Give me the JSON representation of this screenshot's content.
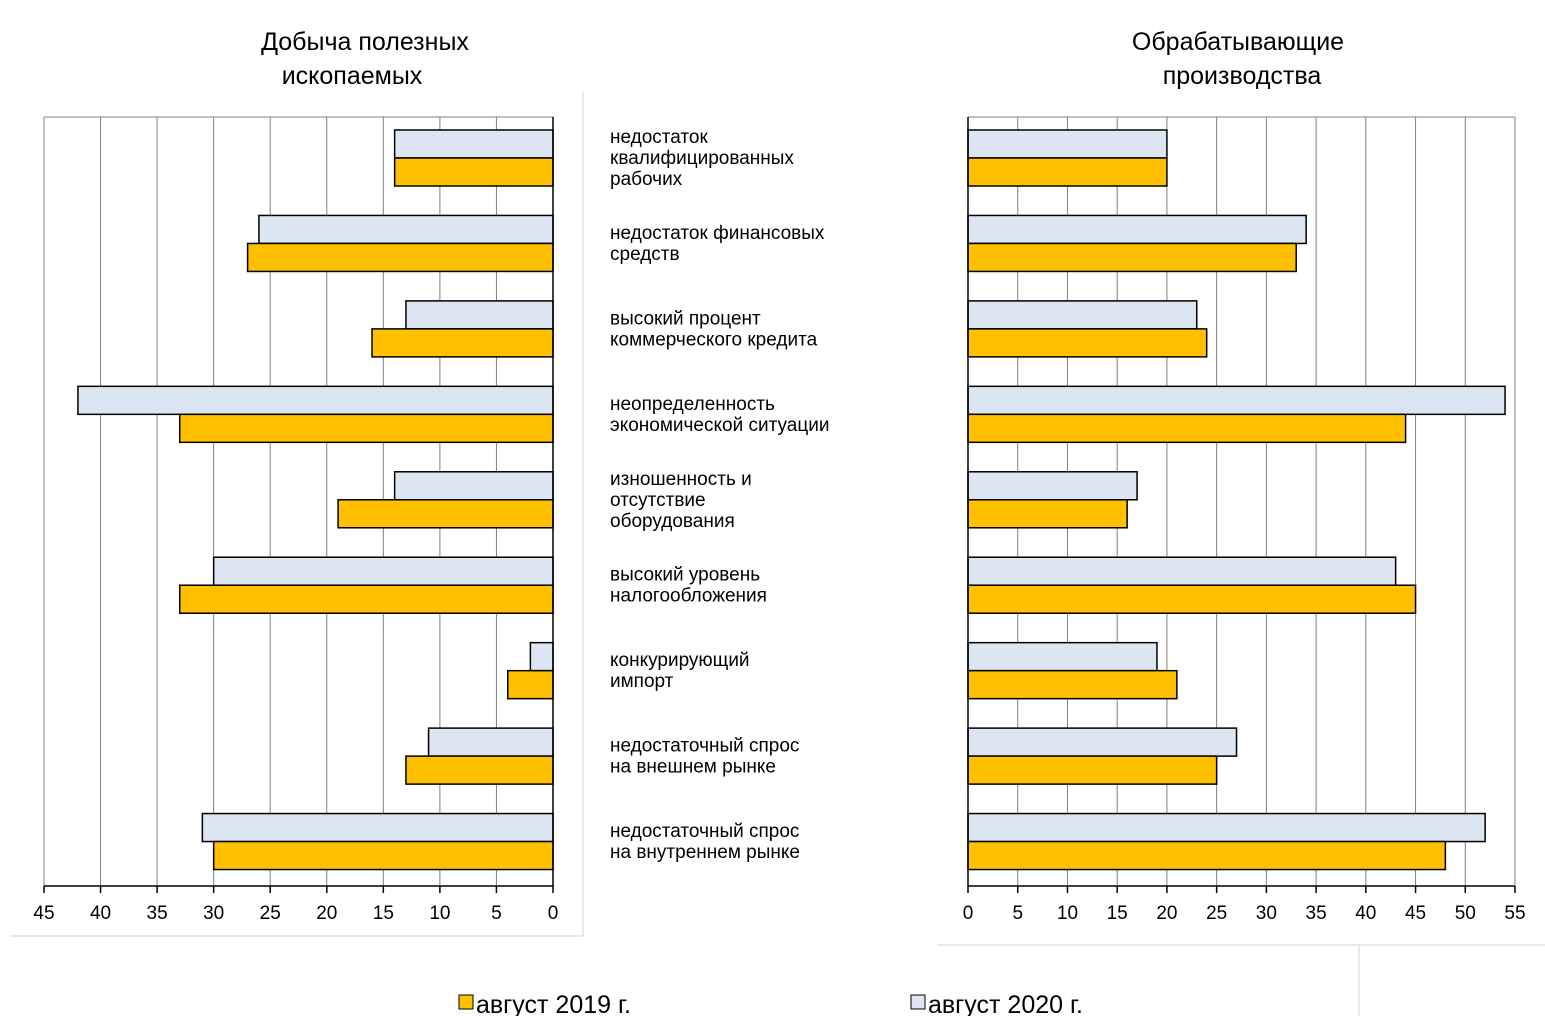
{
  "legend": {
    "series_2019": "август 2019 г.",
    "series_2020": "август 2020 г."
  },
  "colors": {
    "series_2019": "#FFC000",
    "series_2020": "#DCE6F2",
    "bar_stroke": "#000000",
    "grid": "#808080"
  },
  "categories": [
    [
      "недостаток",
      "квалифицированных",
      "рабочих"
    ],
    [
      "недостаток финансовых",
      "средств"
    ],
    [
      "высокий процент",
      "коммерческого кредита"
    ],
    [
      "неопределенность",
      "экономической ситуации"
    ],
    [
      "изношенность и",
      "отсутствие",
      "оборудования"
    ],
    [
      "высокий уровень",
      "налогообложения"
    ],
    [
      "конкурирующий",
      "импорт"
    ],
    [
      "недостаточный спрос",
      "на внешнем рынке"
    ],
    [
      "недостаточный спрос",
      "на внутреннем рынке"
    ]
  ],
  "chart_data": [
    {
      "type": "bar",
      "orientation": "horizontal",
      "x_reversed": true,
      "title": [
        "Добыча полезных",
        "ископаемых"
      ],
      "xlim": [
        0,
        45
      ],
      "xticks": [
        45,
        40,
        35,
        30,
        25,
        20,
        15,
        10,
        5,
        0
      ],
      "grid": true,
      "series": [
        {
          "name": "август 2020 г.",
          "values": [
            14,
            26,
            13,
            42,
            14,
            30,
            2,
            11,
            31
          ]
        },
        {
          "name": "август 2019 г.",
          "values": [
            14,
            27,
            16,
            33,
            19,
            33,
            4,
            13,
            30
          ]
        }
      ]
    },
    {
      "type": "bar",
      "orientation": "horizontal",
      "x_reversed": false,
      "title": [
        "Обрабатывающие",
        "производства"
      ],
      "xlim": [
        0,
        55
      ],
      "xticks": [
        0,
        5,
        10,
        15,
        20,
        25,
        30,
        35,
        40,
        45,
        50,
        55
      ],
      "grid": true,
      "series": [
        {
          "name": "август 2020 г.",
          "values": [
            20,
            34,
            23,
            54,
            17,
            43,
            19,
            27,
            52
          ]
        },
        {
          "name": "август 2019 г.",
          "values": [
            20,
            33,
            24,
            44,
            16,
            45,
            21,
            25,
            48
          ]
        }
      ]
    }
  ]
}
